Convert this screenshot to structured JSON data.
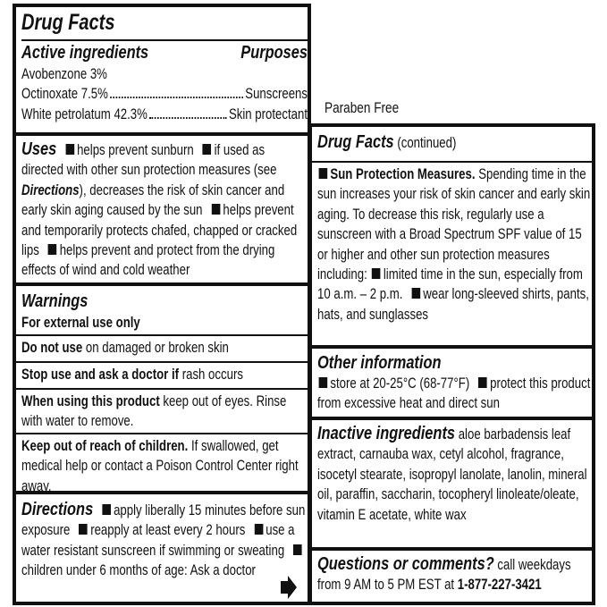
{
  "left": {
    "title": "Drug Facts",
    "active_heading": "Active ingredients",
    "purposes_heading": "Purposes",
    "ingredients": [
      {
        "name": "Avobenzone 3%"
      },
      {
        "name": "Octinoxate 7.5%",
        "purpose": "Sunscreens"
      },
      {
        "name": "White petrolatum 42.3%",
        "purpose": "Skin protectant"
      }
    ],
    "uses": {
      "heading": "Uses",
      "items": [
        [
          "helps prevent sunburn"
        ],
        [
          "if used as directed with other sun protection measures (see",
          "Directions",
          "), decreases the risk of skin cancer and early skin aging caused by the sun"
        ],
        [
          "helps prevent and temporarily protects chafed, chapped or cracked lips"
        ],
        [
          "helps prevent and protect from the drying effects of wind and cold weather"
        ]
      ]
    },
    "warnings": {
      "heading": "Warnings",
      "external": "For external use only",
      "sections": [
        {
          "bold": "Do not use",
          "text": "on damaged or broken skin"
        },
        {
          "bold": "Stop use and ask a doctor if",
          "text": "rash occurs"
        },
        {
          "bold": "When using this product",
          "text": "keep out of eyes. Rinse with water to remove."
        },
        {
          "bold": "Keep out of reach of children.",
          "text": "If swallowed, get medical help or contact a Poison Control Center right away."
        }
      ]
    },
    "directions": {
      "heading": "Directions",
      "items": [
        "apply liberally 15 minutes before sun exposure",
        "reapply at least every 2 hours",
        "use a water resistant sunscreen if swimming or sweating",
        "children under 6 months of age: Ask a doctor"
      ]
    }
  },
  "paraben_free": "Paraben Free",
  "right": {
    "title": "Drug Facts",
    "title_note": "(continued)",
    "sun": {
      "heading": "Sun Protection Measures.",
      "text": "Spending time in the sun increases your risk of skin cancer and early skin aging. To decrease this risk, regularly use a sunscreen with a Broad Spectrum SPF value of 15 or higher and other sun protection measures including:",
      "items": [
        "limited time in the sun, especially from 10 a.m. – 2 p.m.",
        "wear long-sleeved shirts, pants, hats, and sunglasses"
      ]
    },
    "other": {
      "heading": "Other information",
      "items": [
        "store at 20-25°C (68-77°F)",
        "protect this product from excessive heat and direct sun"
      ]
    },
    "inactive": {
      "heading": "Inactive ingredients",
      "text": "aloe barbadensis leaf extract, carnauba wax, cetyl alcohol, fragrance, isocetyl stearate, isopropyl lanolate, lanolin, mineral oil, paraffin, saccharin, tocopheryl linoleate/oleate, vitamin E acetate, white wax"
    },
    "questions": {
      "heading": "Questions or comments?",
      "text": "call weekdays from 9 AM to 5 PM EST at",
      "phone": "1-877-227-3421"
    }
  }
}
